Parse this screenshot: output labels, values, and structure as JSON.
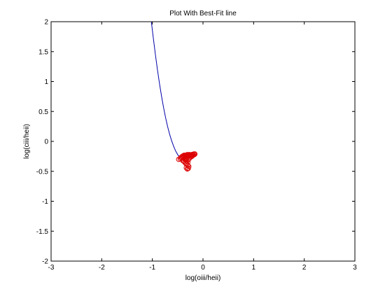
{
  "chart_data": {
    "type": "scatter",
    "title": "Plot With Best-Fit line",
    "xlabel": "log(oiii/heii)",
    "ylabel": "log(ciii/heii)",
    "xlim": [
      -3,
      3
    ],
    "ylim": [
      -2,
      2
    ],
    "x_ticks": [
      -3,
      -2,
      -1,
      0,
      1,
      2,
      3
    ],
    "y_ticks": [
      -2,
      -1.5,
      -1,
      -0.5,
      0,
      0.5,
      1,
      1.5,
      2
    ],
    "x_tick_labels": [
      "-3",
      "-2",
      "-1",
      "0",
      "1",
      "2",
      "3"
    ],
    "y_tick_labels": [
      "-2",
      "-1.5",
      "-1",
      "-0.5",
      "0",
      "0.5",
      "1",
      "1.5",
      "2"
    ],
    "grid": false,
    "series": [
      {
        "kind": "line",
        "color": "#0000aa",
        "x": [
          -1.02,
          -0.98,
          -0.94,
          -0.9,
          -0.86,
          -0.82,
          -0.78,
          -0.74,
          -0.7,
          -0.66,
          -0.62,
          -0.58,
          -0.54,
          -0.5,
          -0.46,
          -0.43
        ],
        "y": [
          2.0,
          1.72,
          1.45,
          1.2,
          0.97,
          0.76,
          0.57,
          0.4,
          0.25,
          0.12,
          0.01,
          -0.08,
          -0.16,
          -0.22,
          -0.27,
          -0.29
        ]
      },
      {
        "kind": "markers",
        "marker": "circle",
        "color": "#dd0000",
        "x": [
          -0.48,
          -0.45,
          -0.42,
          -0.4,
          -0.38,
          -0.36,
          -0.34,
          -0.32,
          -0.3,
          -0.28,
          -0.26,
          -0.24,
          -0.22,
          -0.2,
          -0.18,
          -0.16,
          -0.44,
          -0.41,
          -0.39,
          -0.37,
          -0.35,
          -0.33,
          -0.31,
          -0.29,
          -0.27,
          -0.25,
          -0.23,
          -0.21,
          -0.19,
          -0.17,
          -0.4,
          -0.38,
          -0.36,
          -0.34,
          -0.32,
          -0.3,
          -0.28,
          -0.36,
          -0.34,
          -0.32,
          -0.3,
          -0.33,
          -0.31,
          -0.29,
          -0.35,
          -0.33,
          -0.26,
          -0.24,
          -0.22,
          -0.28
        ],
        "y": [
          -0.3,
          -0.29,
          -0.28,
          -0.27,
          -0.26,
          -0.26,
          -0.25,
          -0.25,
          -0.24,
          -0.24,
          -0.23,
          -0.23,
          -0.22,
          -0.22,
          -0.21,
          -0.21,
          -0.27,
          -0.25,
          -0.24,
          -0.23,
          -0.24,
          -0.23,
          -0.22,
          -0.23,
          -0.22,
          -0.24,
          -0.23,
          -0.22,
          -0.23,
          -0.22,
          -0.32,
          -0.33,
          -0.35,
          -0.37,
          -0.38,
          -0.4,
          -0.42,
          -0.3,
          -0.31,
          -0.33,
          -0.35,
          -0.44,
          -0.46,
          -0.45,
          -0.28,
          -0.29,
          -0.27,
          -0.26,
          -0.25,
          -0.3
        ]
      }
    ]
  }
}
